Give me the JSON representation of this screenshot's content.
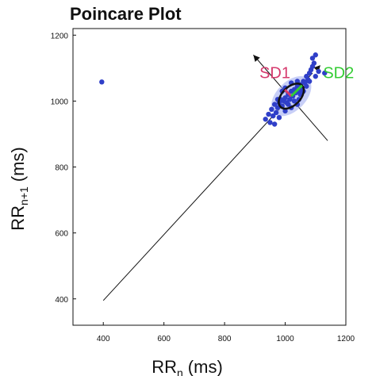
{
  "chart_data": {
    "type": "scatter",
    "title": "Poincare Plot",
    "xlabel": {
      "main": "RR",
      "sub": "n",
      "unit": "(ms)"
    },
    "ylabel": {
      "main": "RR",
      "sub": "n+1",
      "unit": "(ms)"
    },
    "xlim": [
      300,
      1200
    ],
    "ylim": [
      320,
      1220
    ],
    "xticks": [
      400,
      600,
      800,
      1000,
      1200
    ],
    "yticks": [
      400,
      600,
      800,
      1000,
      1200
    ],
    "grid": false,
    "identity_line": {
      "from": [
        400,
        395
      ],
      "to": [
        1090,
        1085
      ]
    },
    "perpendicular_line": {
      "from": [
        895,
        1140
      ],
      "to": [
        1140,
        880
      ]
    },
    "ellipse": {
      "center": [
        1020,
        1015
      ],
      "sd1": 30,
      "sd2": 50,
      "angle_deg": 45
    },
    "annotations": [
      {
        "text": "SD1",
        "x": 915,
        "y": 1070,
        "color": "#d63a6e"
      },
      {
        "text": "SD2",
        "x": 1125,
        "y": 1070,
        "color": "#33cc33"
      }
    ],
    "points": [
      [
        395,
        1058
      ],
      [
        935,
        945
      ],
      [
        950,
        935
      ],
      [
        960,
        955
      ],
      [
        945,
        960
      ],
      [
        970,
        965
      ],
      [
        955,
        975
      ],
      [
        975,
        980
      ],
      [
        965,
        990
      ],
      [
        980,
        995
      ],
      [
        990,
        985
      ],
      [
        985,
        1005
      ],
      [
        995,
        1000
      ],
      [
        1000,
        1010
      ],
      [
        1005,
        995
      ],
      [
        1010,
        1020
      ],
      [
        1015,
        1005
      ],
      [
        1020,
        1030
      ],
      [
        1025,
        1015
      ],
      [
        1030,
        1035
      ],
      [
        1035,
        1025
      ],
      [
        1040,
        1045
      ],
      [
        1045,
        1030
      ],
      [
        1050,
        1050
      ],
      [
        1055,
        1040
      ],
      [
        1060,
        1060
      ],
      [
        1065,
        1055
      ],
      [
        1070,
        1075
      ],
      [
        1075,
        1065
      ],
      [
        1080,
        1085
      ],
      [
        1085,
        1095
      ],
      [
        1090,
        1105
      ],
      [
        1095,
        1115
      ],
      [
        1090,
        1130
      ],
      [
        1100,
        1140
      ],
      [
        1000,
        1040
      ],
      [
        990,
        1030
      ],
      [
        1010,
        990
      ],
      [
        1030,
        1000
      ],
      [
        1050,
        1020
      ],
      [
        975,
        1005
      ],
      [
        1060,
        1030
      ],
      [
        1040,
        1060
      ],
      [
        1020,
        1055
      ],
      [
        1070,
        1045
      ],
      [
        1080,
        1060
      ],
      [
        1100,
        1075
      ],
      [
        1110,
        1090
      ],
      [
        1130,
        1085
      ],
      [
        1040,
        990
      ],
      [
        965,
        930
      ],
      [
        980,
        950
      ],
      [
        1000,
        970
      ],
      [
        1020,
        980
      ],
      [
        1045,
        1005
      ]
    ]
  }
}
